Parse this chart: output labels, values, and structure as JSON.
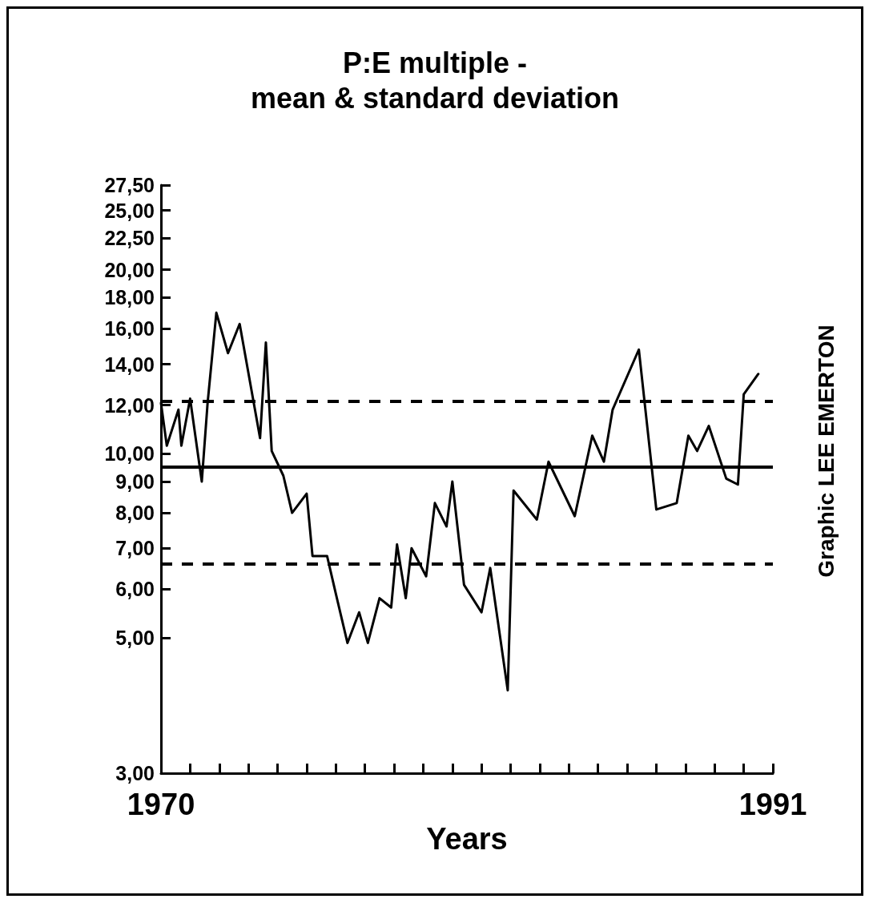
{
  "chart_data": {
    "type": "line",
    "title": "P:E multiple -\nmean & standard deviation",
    "xlabel": "Years",
    "annotations": [
      "Graphic LEE EMERTON"
    ],
    "log": "y",
    "marker": "none",
    "line_style": "solid",
    "xlim": [
      1970,
      1991
    ],
    "xticks": [
      {
        "value": 1970,
        "label": "1970"
      },
      {
        "value": 1971,
        "label": null
      },
      {
        "value": 1972,
        "label": null
      },
      {
        "value": 1973,
        "label": null
      },
      {
        "value": 1974,
        "label": null
      },
      {
        "value": 1975,
        "label": null
      },
      {
        "value": 1976,
        "label": null
      },
      {
        "value": 1977,
        "label": null
      },
      {
        "value": 1978,
        "label": null
      },
      {
        "value": 1979,
        "label": null
      },
      {
        "value": 1980,
        "label": null
      },
      {
        "value": 1981,
        "label": null
      },
      {
        "value": 1982,
        "label": null
      },
      {
        "value": 1983,
        "label": null
      },
      {
        "value": 1984,
        "label": null
      },
      {
        "value": 1985,
        "label": null
      },
      {
        "value": 1986,
        "label": null
      },
      {
        "value": 1987,
        "label": null
      },
      {
        "value": 1988,
        "label": null
      },
      {
        "value": 1989,
        "label": null
      },
      {
        "value": 1990,
        "label": null
      },
      {
        "value": 1991,
        "label": "1991"
      }
    ],
    "ylim": [
      3,
      27.5
    ],
    "yticks": [
      {
        "value": 3,
        "label": "3,00"
      },
      {
        "value": 5,
        "label": "5,00"
      },
      {
        "value": 6,
        "label": "6,00"
      },
      {
        "value": 7,
        "label": "7,00"
      },
      {
        "value": 8,
        "label": "8,00"
      },
      {
        "value": 9,
        "label": "9,00"
      },
      {
        "value": 10,
        "label": "10,00"
      },
      {
        "value": 12,
        "label": "12,00"
      },
      {
        "value": 14,
        "label": "14,00"
      },
      {
        "value": 16,
        "label": "16,00"
      },
      {
        "value": 18,
        "label": "18,00"
      },
      {
        "value": 20,
        "label": "20,00"
      },
      {
        "value": 22.5,
        "label": "22,50"
      },
      {
        "value": 25,
        "label": "25,00"
      },
      {
        "value": 27.5,
        "label": "27,50"
      }
    ],
    "ref_lines": [
      {
        "axis": "y",
        "value": 9.5,
        "line_style": "solid",
        "color": "#000000"
      },
      {
        "axis": "y",
        "value": 12.2,
        "line_style": "dashed",
        "color": "#000000"
      },
      {
        "axis": "y",
        "value": 6.6,
        "line_style": "dashed",
        "color": "#000000"
      }
    ],
    "series": [
      {
        "color": "#000000",
        "x": [
          1970.0,
          1970.2,
          1970.6,
          1970.7,
          1971.0,
          1971.4,
          1971.6,
          1971.9,
          1972.3,
          1972.7,
          1973.4,
          1973.6,
          1973.8,
          1974.2,
          1974.5,
          1975.0,
          1975.2,
          1975.7,
          1976.0,
          1976.4,
          1976.8,
          1977.1,
          1977.5,
          1977.9,
          1978.1,
          1978.4,
          1978.6,
          1979.1,
          1979.4,
          1979.8,
          1980.0,
          1980.4,
          1981.0,
          1981.3,
          1981.9,
          1982.1,
          1982.9,
          1983.3,
          1984.2,
          1984.8,
          1985.2,
          1985.5,
          1986.4,
          1987.0,
          1987.7,
          1988.1,
          1988.4,
          1988.8,
          1989.4,
          1989.8,
          1990.0,
          1990.5
        ],
        "values": [
          12.1,
          10.3,
          11.8,
          10.3,
          12.3,
          9.0,
          12.1,
          17,
          14.6,
          16.3,
          10.6,
          15.2,
          10.1,
          9.2,
          8.0,
          8.6,
          6.8,
          6.8,
          5.9,
          4.9,
          5.5,
          4.9,
          5.8,
          5.6,
          7.1,
          5.8,
          7.0,
          6.3,
          8.3,
          7.6,
          9.0,
          6.1,
          5.5,
          6.5,
          4.1,
          8.7,
          7.8,
          9.7,
          7.9,
          10.7,
          9.7,
          11.8,
          14.8,
          8.1,
          8.3,
          10.7,
          10.1,
          11.1,
          9.1,
          8.9,
          12.5,
          13.5
        ]
      }
    ]
  }
}
